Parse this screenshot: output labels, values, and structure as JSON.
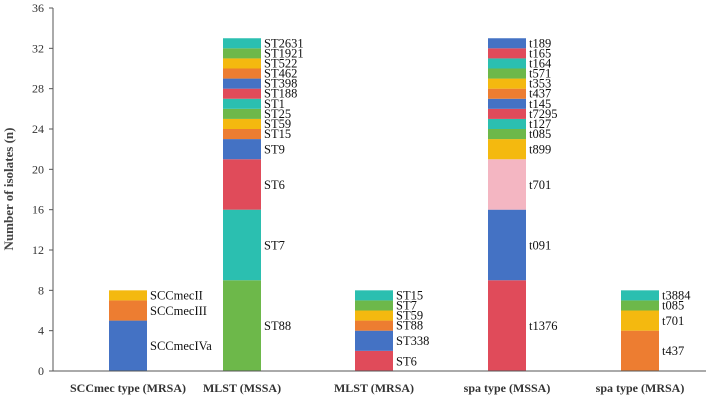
{
  "chart_data": {
    "type": "bar",
    "stacked": true,
    "title": "",
    "xlabel": "",
    "ylabel": "Number of isolates (n)",
    "ylim": [
      0,
      36
    ],
    "yticks": [
      0,
      4,
      8,
      12,
      16,
      20,
      24,
      28,
      32,
      36
    ],
    "grid": false,
    "legend": "none",
    "categories": [
      "SCCmec type (MRSA)",
      "MLST (MSSA)",
      "MLST (MRSA)",
      "spa type (MSSA)",
      "spa type (MRSA)"
    ],
    "bars": [
      {
        "category": "SCCmec type (MRSA)",
        "segments": [
          {
            "label": "SCCmecIVa",
            "value": 5,
            "color": "#4472C4"
          },
          {
            "label": "SCCmecIII",
            "value": 2,
            "color": "#ED7D31"
          },
          {
            "label": "SCCmecII",
            "value": 1,
            "color": "#F4B90F"
          }
        ]
      },
      {
        "category": "MLST (MSSA)",
        "segments": [
          {
            "label": "ST88",
            "value": 9,
            "color": "#6DB84A"
          },
          {
            "label": "ST7",
            "value": 7,
            "color": "#2BBFB0"
          },
          {
            "label": "ST6",
            "value": 5,
            "color": "#E04B5A"
          },
          {
            "label": "ST9",
            "value": 2,
            "color": "#4472C4"
          },
          {
            "label": "ST15",
            "value": 1,
            "color": "#ED7D31"
          },
          {
            "label": "ST59",
            "value": 1,
            "color": "#F4B90F"
          },
          {
            "label": "ST25",
            "value": 1,
            "color": "#6DB84A"
          },
          {
            "label": "ST1",
            "value": 1,
            "color": "#2BBFB0"
          },
          {
            "label": "ST188",
            "value": 1,
            "color": "#E04B5A"
          },
          {
            "label": "ST398",
            "value": 1,
            "color": "#4472C4"
          },
          {
            "label": "ST462",
            "value": 1,
            "color": "#ED7D31"
          },
          {
            "label": "ST522",
            "value": 1,
            "color": "#F4B90F"
          },
          {
            "label": "ST1921",
            "value": 1,
            "color": "#6DB84A"
          },
          {
            "label": "ST2631",
            "value": 1,
            "color": "#2BBFB0"
          }
        ]
      },
      {
        "category": "MLST (MRSA)",
        "segments": [
          {
            "label": "ST6",
            "value": 2,
            "color": "#E04B5A"
          },
          {
            "label": "ST338",
            "value": 2,
            "color": "#4472C4"
          },
          {
            "label": "ST88",
            "value": 1,
            "color": "#ED7D31"
          },
          {
            "label": "ST59",
            "value": 1,
            "color": "#F4B90F"
          },
          {
            "label": "ST7",
            "value": 1,
            "color": "#6DB84A"
          },
          {
            "label": "ST15",
            "value": 1,
            "color": "#2BBFB0"
          }
        ]
      },
      {
        "category": "spa type (MSSA)",
        "segments": [
          {
            "label": "t1376",
            "value": 9,
            "color": "#E04B5A"
          },
          {
            "label": "t091",
            "value": 7,
            "color": "#4472C4"
          },
          {
            "label": "t701",
            "value": 5,
            "color": "#F4B6C2"
          },
          {
            "label": "t899",
            "value": 2,
            "color": "#F4B90F"
          },
          {
            "label": "t085",
            "value": 1,
            "color": "#6DB84A"
          },
          {
            "label": "t127",
            "value": 1,
            "color": "#2BBFB0"
          },
          {
            "label": "t7295",
            "value": 1,
            "color": "#E04B5A"
          },
          {
            "label": "t145",
            "value": 1,
            "color": "#4472C4"
          },
          {
            "label": "t437",
            "value": 1,
            "color": "#ED7D31"
          },
          {
            "label": "t353",
            "value": 1,
            "color": "#F4B90F"
          },
          {
            "label": "t571",
            "value": 1,
            "color": "#6DB84A"
          },
          {
            "label": "t164",
            "value": 1,
            "color": "#2BBFB0"
          },
          {
            "label": "t165",
            "value": 1,
            "color": "#E04B5A"
          },
          {
            "label": "t189",
            "value": 1,
            "color": "#4472C4"
          }
        ]
      },
      {
        "category": "spa type (MRSA)",
        "segments": [
          {
            "label": "t437",
            "value": 4,
            "color": "#ED7D31"
          },
          {
            "label": "t701",
            "value": 2,
            "color": "#F4B90F"
          },
          {
            "label": "t085",
            "value": 1,
            "color": "#6DB84A"
          },
          {
            "label": "t3884",
            "value": 1,
            "color": "#2BBFB0"
          }
        ]
      }
    ]
  }
}
